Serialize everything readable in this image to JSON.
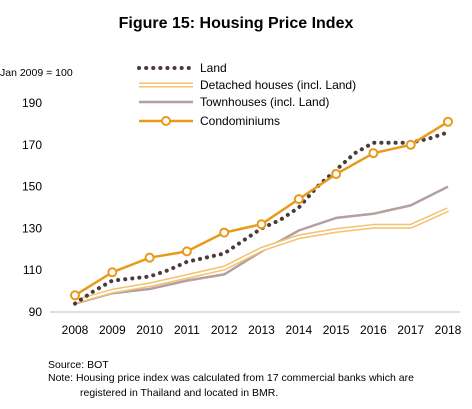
{
  "chart_data": {
    "type": "line",
    "title": "Figure 15: Housing Price Index",
    "ylabel": "Jan 2009 = 100",
    "xlabel": "",
    "ylim": [
      90,
      195
    ],
    "yticks": [
      90,
      110,
      130,
      150,
      170,
      190
    ],
    "x": [
      "2008",
      "2009",
      "2010",
      "2011",
      "2012",
      "2013",
      "2014",
      "2015",
      "2016",
      "2017",
      "2018"
    ],
    "grid": false,
    "legend_position": "top-left",
    "series": [
      {
        "name": "Land",
        "style": "dotted",
        "color": "#4a3c37",
        "points": [
          {
            "x": 2008.0,
            "y": 94
          },
          {
            "x": 2008.5,
            "y": 100
          },
          {
            "x": 2009.0,
            "y": 105
          },
          {
            "x": 2009.5,
            "y": 106
          },
          {
            "x": 2010.0,
            "y": 107
          },
          {
            "x": 2010.5,
            "y": 110
          },
          {
            "x": 2011.0,
            "y": 114
          },
          {
            "x": 2011.5,
            "y": 116
          },
          {
            "x": 2012.0,
            "y": 118
          },
          {
            "x": 2012.5,
            "y": 124
          },
          {
            "x": 2013.0,
            "y": 130
          },
          {
            "x": 2013.5,
            "y": 134
          },
          {
            "x": 2014.0,
            "y": 140
          },
          {
            "x": 2014.5,
            "y": 150
          },
          {
            "x": 2015.0,
            "y": 158
          },
          {
            "x": 2015.5,
            "y": 166
          },
          {
            "x": 2016.0,
            "y": 171
          },
          {
            "x": 2016.5,
            "y": 171
          },
          {
            "x": 2017.0,
            "y": 171
          },
          {
            "x": 2017.5,
            "y": 173
          },
          {
            "x": 2018.0,
            "y": 176
          }
        ]
      },
      {
        "name": "Detached houses (incl. Land)",
        "style": "double",
        "color": "#f3c16f",
        "points": [
          {
            "x": 2008,
            "y": 95
          },
          {
            "x": 2009,
            "y": 100
          },
          {
            "x": 2010,
            "y": 103
          },
          {
            "x": 2011,
            "y": 107
          },
          {
            "x": 2012,
            "y": 111
          },
          {
            "x": 2013,
            "y": 120
          },
          {
            "x": 2014,
            "y": 126
          },
          {
            "x": 2015,
            "y": 129
          },
          {
            "x": 2016,
            "y": 131
          },
          {
            "x": 2017,
            "y": 131
          },
          {
            "x": 2018,
            "y": 139
          }
        ]
      },
      {
        "name": "Townhouses (incl. Land)",
        "style": "solid",
        "color": "#b3a0a0",
        "points": [
          {
            "x": 2008,
            "y": 94
          },
          {
            "x": 2009,
            "y": 99
          },
          {
            "x": 2010,
            "y": 101
          },
          {
            "x": 2011,
            "y": 105
          },
          {
            "x": 2012,
            "y": 108
          },
          {
            "x": 2013,
            "y": 119
          },
          {
            "x": 2014,
            "y": 129
          },
          {
            "x": 2015,
            "y": 135
          },
          {
            "x": 2016,
            "y": 137
          },
          {
            "x": 2017,
            "y": 141
          },
          {
            "x": 2018,
            "y": 150
          }
        ]
      },
      {
        "name": "Condominiums",
        "style": "markers",
        "color": "#e89a1c",
        "points": [
          {
            "x": 2008,
            "y": 98
          },
          {
            "x": 2009,
            "y": 109
          },
          {
            "x": 2010,
            "y": 116
          },
          {
            "x": 2011,
            "y": 119
          },
          {
            "x": 2012,
            "y": 128
          },
          {
            "x": 2013,
            "y": 132
          },
          {
            "x": 2014,
            "y": 144
          },
          {
            "x": 2015,
            "y": 156
          },
          {
            "x": 2016,
            "y": 166
          },
          {
            "x": 2017,
            "y": 170
          },
          {
            "x": 2018,
            "y": 181
          }
        ]
      }
    ]
  },
  "notes": {
    "source": "Source: BOT",
    "note_line1": "Note: Housing price index was calculated from 17 commercial banks which are",
    "note_line2": "registered in Thailand and located in BMR."
  }
}
